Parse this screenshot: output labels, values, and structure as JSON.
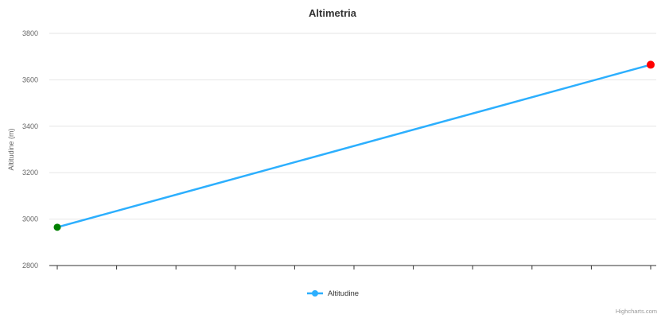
{
  "chart": {
    "title": "Altimetria",
    "y_axis": {
      "title": "Altitudine (m)",
      "min": 2800,
      "max": 3800,
      "tick_interval": 200,
      "ticks": [
        2800,
        3000,
        3200,
        3400,
        3600,
        3800
      ]
    },
    "x_axis": {
      "tick_count": 11,
      "labels_visible": false
    },
    "legend": {
      "items": [
        {
          "label": "Altitudine",
          "color": "#2caffe"
        }
      ]
    },
    "credits": "Highcharts.com"
  },
  "chart_data": {
    "type": "line",
    "title": "Altimetria",
    "xlabel": "",
    "ylabel": "Altitudine (m)",
    "ylim": [
      2800,
      3800
    ],
    "grid": "horizontal",
    "legend_position": "bottom-center",
    "series": [
      {
        "name": "Altitudine",
        "color": "#2caffe",
        "points": [
          {
            "x": 0,
            "y": 2965,
            "marker_color": "#008000"
          },
          {
            "x": 10,
            "y": 3665,
            "marker_color": "#ff0000"
          }
        ]
      }
    ]
  },
  "colors": {
    "line": "#2caffe",
    "start_marker": "#008000",
    "end_marker": "#ff0000",
    "gridline": "#e6e6e6",
    "axis_line": "#333333",
    "axis_label": "#666666",
    "title": "#333333",
    "credits": "#999999"
  }
}
